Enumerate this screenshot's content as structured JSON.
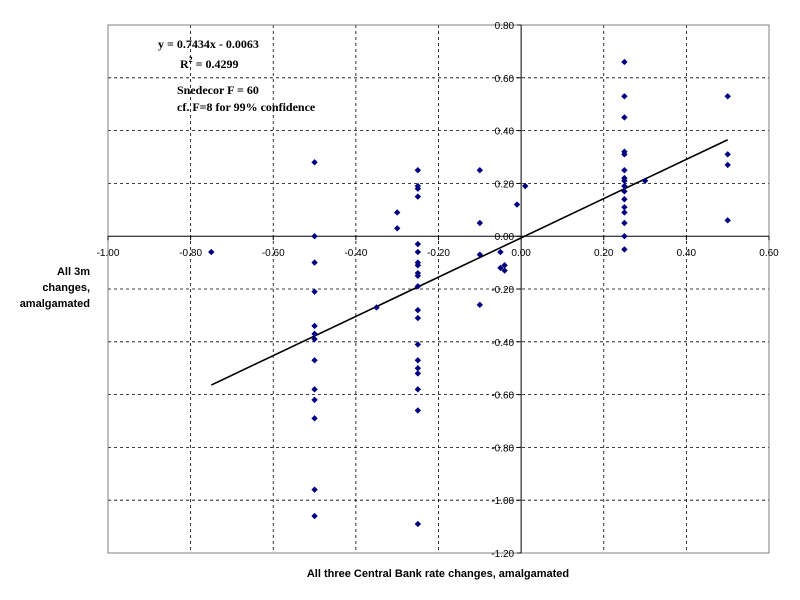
{
  "chart_data": {
    "type": "scatter",
    "title": "",
    "xlabel": "All three Central Bank rate changes, amalgamated",
    "ylabel_lines": [
      "All 3m",
      "changes,",
      "amalgamated"
    ],
    "xlim": [
      -1.0,
      0.6
    ],
    "ylim": [
      -1.2,
      0.8
    ],
    "x_ticks": [
      -1.0,
      -0.8,
      -0.6,
      -0.4,
      -0.2,
      0.0,
      0.2,
      0.4,
      0.6
    ],
    "y_ticks": [
      0.8,
      0.6,
      0.4,
      0.2,
      0.0,
      -0.2,
      -0.4,
      -0.6,
      -0.8,
      -1.0,
      -1.2
    ],
    "x_tick_labels": [
      "-1.00",
      "-0.80",
      "-0.60",
      "-0.40",
      "-0.20",
      "0.00",
      "0.20",
      "0.40",
      "0.60"
    ],
    "y_tick_labels": [
      "0.80",
      "0.60",
      "0.40",
      "0.20",
      "0.00",
      "-0.20",
      "-0.40",
      "-0.60",
      "-0.80",
      "-1.00",
      "-1.20"
    ],
    "grid": true,
    "point_color": "#000080",
    "line_color": "#000000",
    "annotations": {
      "equation": "y = 0.7434x - 0.0063",
      "r2_prefix": "R",
      "r2_sup": "2",
      "r2_suffix": " = 0.4299",
      "snedecor": "Snedecor F = 60",
      "confidence": "cf. F=8 for 99% confidence"
    },
    "trendline": {
      "slope": 0.7434,
      "intercept": -0.0063,
      "x_range": [
        -0.75,
        0.5
      ]
    },
    "points": [
      {
        "x": -0.75,
        "y": -0.06
      },
      {
        "x": -0.5,
        "y": 0.28
      },
      {
        "x": -0.5,
        "y": 0.0
      },
      {
        "x": -0.5,
        "y": -0.1
      },
      {
        "x": -0.5,
        "y": -0.21
      },
      {
        "x": -0.5,
        "y": -0.34
      },
      {
        "x": -0.5,
        "y": -0.37
      },
      {
        "x": -0.5,
        "y": -0.39
      },
      {
        "x": -0.5,
        "y": -0.47
      },
      {
        "x": -0.5,
        "y": -0.58
      },
      {
        "x": -0.5,
        "y": -0.62
      },
      {
        "x": -0.5,
        "y": -0.69
      },
      {
        "x": -0.5,
        "y": -0.96
      },
      {
        "x": -0.5,
        "y": -1.06
      },
      {
        "x": -0.35,
        "y": -0.27
      },
      {
        "x": -0.3,
        "y": 0.09
      },
      {
        "x": -0.3,
        "y": 0.03
      },
      {
        "x": -0.25,
        "y": 0.25
      },
      {
        "x": -0.25,
        "y": 0.19
      },
      {
        "x": -0.25,
        "y": 0.18
      },
      {
        "x": -0.25,
        "y": 0.15
      },
      {
        "x": -0.25,
        "y": -0.03
      },
      {
        "x": -0.25,
        "y": -0.06
      },
      {
        "x": -0.25,
        "y": -0.1
      },
      {
        "x": -0.25,
        "y": -0.11
      },
      {
        "x": -0.25,
        "y": -0.14
      },
      {
        "x": -0.25,
        "y": -0.15
      },
      {
        "x": -0.25,
        "y": -0.19
      },
      {
        "x": -0.25,
        "y": -0.28
      },
      {
        "x": -0.25,
        "y": -0.31
      },
      {
        "x": -0.25,
        "y": -0.41
      },
      {
        "x": -0.25,
        "y": -0.47
      },
      {
        "x": -0.25,
        "y": -0.5
      },
      {
        "x": -0.25,
        "y": -0.52
      },
      {
        "x": -0.25,
        "y": -0.58
      },
      {
        "x": -0.25,
        "y": -0.66
      },
      {
        "x": -0.25,
        "y": -1.09
      },
      {
        "x": -0.1,
        "y": 0.25
      },
      {
        "x": -0.1,
        "y": 0.05
      },
      {
        "x": -0.1,
        "y": -0.07
      },
      {
        "x": -0.1,
        "y": -0.26
      },
      {
        "x": -0.05,
        "y": -0.12
      },
      {
        "x": -0.04,
        "y": -0.13
      },
      {
        "x": -0.05,
        "y": -0.06
      },
      {
        "x": -0.04,
        "y": -0.11
      },
      {
        "x": -0.01,
        "y": 0.12
      },
      {
        "x": 0.01,
        "y": 0.19
      },
      {
        "x": 0.25,
        "y": 0.66
      },
      {
        "x": 0.25,
        "y": 0.53
      },
      {
        "x": 0.25,
        "y": 0.45
      },
      {
        "x": 0.25,
        "y": 0.32
      },
      {
        "x": 0.25,
        "y": 0.31
      },
      {
        "x": 0.25,
        "y": 0.25
      },
      {
        "x": 0.25,
        "y": 0.22
      },
      {
        "x": 0.25,
        "y": 0.21
      },
      {
        "x": 0.25,
        "y": 0.19
      },
      {
        "x": 0.25,
        "y": 0.17
      },
      {
        "x": 0.25,
        "y": 0.14
      },
      {
        "x": 0.25,
        "y": 0.11
      },
      {
        "x": 0.25,
        "y": 0.09
      },
      {
        "x": 0.25,
        "y": 0.05
      },
      {
        "x": 0.25,
        "y": 0.0
      },
      {
        "x": 0.25,
        "y": -0.05
      },
      {
        "x": 0.3,
        "y": 0.21
      },
      {
        "x": 0.5,
        "y": 0.53
      },
      {
        "x": 0.5,
        "y": 0.31
      },
      {
        "x": 0.5,
        "y": 0.27
      },
      {
        "x": 0.5,
        "y": 0.06
      }
    ]
  }
}
